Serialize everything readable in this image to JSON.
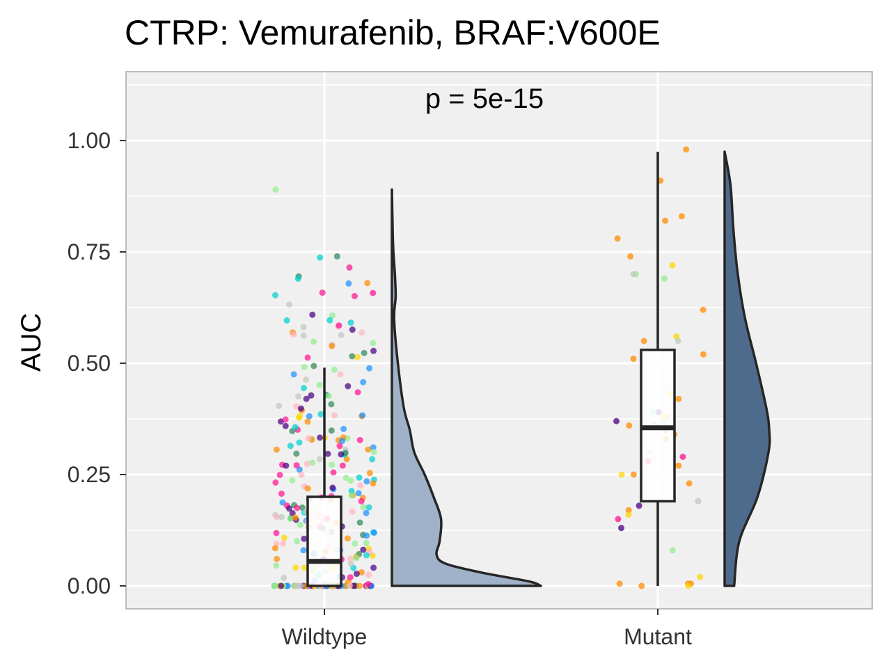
{
  "chart_data": {
    "type": "raincloud",
    "title": "CTRP: Vemurafenib, BRAF:V600E",
    "ylabel": "AUC",
    "xlabel": "",
    "annotation": "p = 5e-15",
    "categories": [
      "Wildtype",
      "Mutant"
    ],
    "ylim": [
      -0.05,
      1.16
    ],
    "yticks": [
      0.0,
      0.25,
      0.5,
      0.75,
      1.0
    ],
    "ytick_labels": [
      "0.00",
      "0.25",
      "0.50",
      "0.75",
      "1.00"
    ],
    "grid": true,
    "colors": {
      "panel_background": "#f0f0f0",
      "grid": "#ffffff",
      "panel_border": "#a8a8a8",
      "wildtype_violin": "#9fb2c9",
      "mutant_violin": "#4f6b8c",
      "outline": "#262626",
      "point_palette": [
        "#2e8b57",
        "#1e90ff",
        "#ff1493",
        "#4b0082",
        "#ff8c00",
        "#c0c8c0",
        "#90ee90",
        "#00ced1",
        "#ffd700",
        "#ffb6c1"
      ]
    },
    "boxplots": [
      {
        "group": "Wildtype",
        "min": 0.0,
        "q1": 0.0,
        "median": 0.055,
        "q3": 0.2,
        "max": 0.49
      },
      {
        "group": "Mutant",
        "min": 0.0,
        "q1": 0.19,
        "median": 0.355,
        "q3": 0.53,
        "max": 0.975
      }
    ],
    "densities": [
      {
        "group": "Wildtype",
        "y": [
          0.0,
          0.01,
          0.03,
          0.05,
          0.07,
          0.1,
          0.15,
          0.2,
          0.25,
          0.3,
          0.35,
          0.4,
          0.5,
          0.6,
          0.65,
          0.7,
          0.75,
          0.8,
          0.89
        ],
        "width": [
          1.0,
          0.92,
          0.6,
          0.36,
          0.3,
          0.32,
          0.33,
          0.28,
          0.22,
          0.15,
          0.12,
          0.08,
          0.04,
          0.015,
          0.025,
          0.02,
          0.01,
          0.005,
          0.0
        ]
      },
      {
        "group": "Mutant",
        "y": [
          0.0,
          0.1,
          0.2,
          0.3,
          0.35,
          0.4,
          0.5,
          0.6,
          0.7,
          0.8,
          0.9,
          0.975
        ],
        "width": [
          0.13,
          0.2,
          0.45,
          0.6,
          0.61,
          0.57,
          0.43,
          0.28,
          0.18,
          0.12,
          0.08,
          0.0
        ]
      }
    ],
    "points": [
      {
        "group": "Mutant",
        "values": [
          0.98,
          0.91,
          0.83,
          0.82,
          0.78,
          0.74,
          0.72,
          0.7,
          0.7,
          0.69,
          0.62,
          0.56,
          0.55,
          0.55,
          0.52,
          0.51,
          0.43,
          0.42,
          0.39,
          0.39,
          0.38,
          0.38,
          0.37,
          0.37,
          0.36,
          0.36,
          0.35,
          0.34,
          0.33,
          0.3,
          0.29,
          0.28,
          0.27,
          0.25,
          0.25,
          0.23,
          0.19,
          0.18,
          0.17,
          0.16,
          0.15,
          0.13,
          0.08,
          0.02,
          0.005,
          0.005,
          0.005,
          0.0,
          0.0
        ]
      }
    ]
  }
}
